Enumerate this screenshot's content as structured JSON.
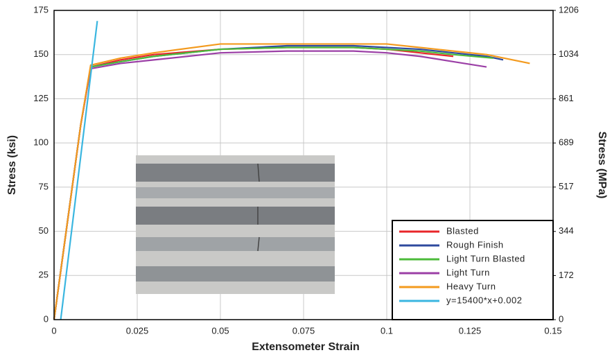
{
  "chart_data": {
    "type": "line",
    "x_label": "Extensometer Strain",
    "y_label": "Stress (ksi)",
    "y2_label": "Stress (MPa)",
    "xlim": [
      0,
      0.15
    ],
    "xticks": [
      0,
      0.025,
      0.05,
      0.075,
      0.1,
      0.125,
      0.15
    ],
    "ylim": [
      0,
      175
    ],
    "yticks": [
      0,
      25,
      50,
      75,
      100,
      125,
      150,
      175
    ],
    "y2lim": [
      0,
      1206
    ],
    "y2ticks": [
      0,
      172,
      344,
      517,
      689,
      861,
      1034,
      1206
    ],
    "grid": true,
    "legend": "lower right",
    "series": [
      {
        "name": "Blasted",
        "color": "#e8262a",
        "x": [
          0,
          0.004,
          0.008,
          0.011,
          0.02,
          0.03,
          0.05,
          0.07,
          0.09,
          0.1,
          0.11,
          0.12
        ],
        "values": [
          0,
          55,
          110,
          143,
          147,
          150,
          153,
          154,
          154,
          153,
          151,
          149
        ]
      },
      {
        "name": "Rough Finish",
        "color": "#2e4a9e",
        "x": [
          0,
          0.004,
          0.008,
          0.011,
          0.02,
          0.03,
          0.05,
          0.07,
          0.09,
          0.1,
          0.11,
          0.12,
          0.13,
          0.135
        ],
        "values": [
          0,
          55,
          110,
          143,
          146,
          149,
          153,
          155,
          155,
          154,
          153,
          151,
          149,
          147
        ]
      },
      {
        "name": "Light Turn Blasted",
        "color": "#4cbb3a",
        "x": [
          0,
          0.004,
          0.008,
          0.011,
          0.02,
          0.03,
          0.05,
          0.07,
          0.09,
          0.1,
          0.11,
          0.12,
          0.132
        ],
        "values": [
          0,
          55,
          110,
          143,
          146,
          149,
          153,
          154,
          154,
          153,
          152,
          150,
          148
        ]
      },
      {
        "name": "Light Turn",
        "color": "#9b3fa6",
        "x": [
          0,
          0.004,
          0.008,
          0.011,
          0.02,
          0.03,
          0.05,
          0.07,
          0.09,
          0.1,
          0.11,
          0.12,
          0.13
        ],
        "values": [
          0,
          55,
          110,
          142,
          145,
          147,
          151,
          152,
          152,
          151,
          149,
          146,
          143
        ]
      },
      {
        "name": "Heavy Turn",
        "color": "#f39a1e",
        "x": [
          0,
          0.004,
          0.008,
          0.011,
          0.02,
          0.03,
          0.05,
          0.07,
          0.09,
          0.1,
          0.11,
          0.12,
          0.13,
          0.143
        ],
        "values": [
          0,
          55,
          110,
          144,
          148,
          151,
          156,
          156,
          156,
          156,
          154,
          152,
          150,
          145
        ]
      },
      {
        "name": "y=15400*x+0.002",
        "color": "#3ab6e0",
        "x": [
          0.002,
          0.013
        ],
        "values": [
          0,
          169
        ]
      }
    ]
  }
}
